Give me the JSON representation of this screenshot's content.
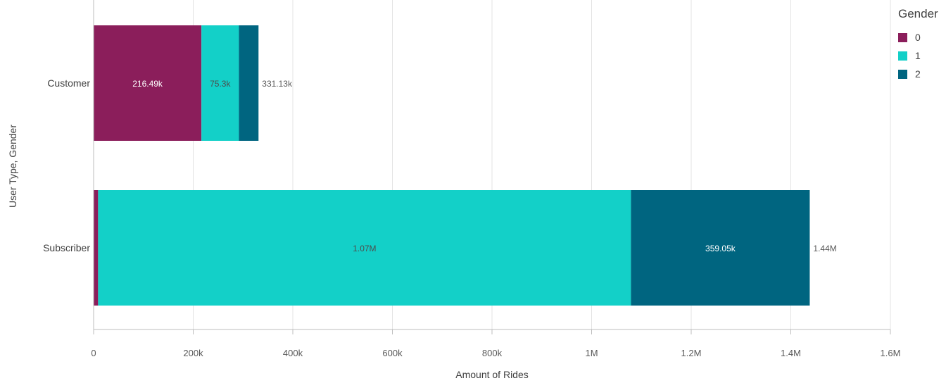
{
  "chart_data": {
    "type": "bar",
    "orientation": "horizontal",
    "stacked": true,
    "categories": [
      "Customer",
      "Subscriber"
    ],
    "series": [
      {
        "name": "0",
        "values": [
          216490,
          9000
        ],
        "color": "#8b1e5b",
        "labels": [
          "216.49k",
          ""
        ]
      },
      {
        "name": "1",
        "values": [
          75300,
          1070000
        ],
        "color": "#13d0c8",
        "labels": [
          "75.3k",
          "1.07M"
        ]
      },
      {
        "name": "2",
        "values": [
          39340,
          359050
        ],
        "color": "#006580",
        "labels": [
          "",
          "359.05k"
        ]
      }
    ],
    "totals": [
      "331.13k",
      "1.44M"
    ],
    "xlabel": "Amount of Rides",
    "ylabel": "User Type, Gender",
    "xlim": [
      0,
      1600000
    ],
    "xticks": [
      0,
      200000,
      400000,
      600000,
      800000,
      1000000,
      1200000,
      1400000,
      1600000
    ],
    "xtick_labels": [
      "0",
      "200k",
      "400k",
      "600k",
      "800k",
      "1M",
      "1.2M",
      "1.4M",
      "1.6M"
    ],
    "grid": true,
    "legend": {
      "title": "Gender",
      "position": "top-right"
    }
  }
}
